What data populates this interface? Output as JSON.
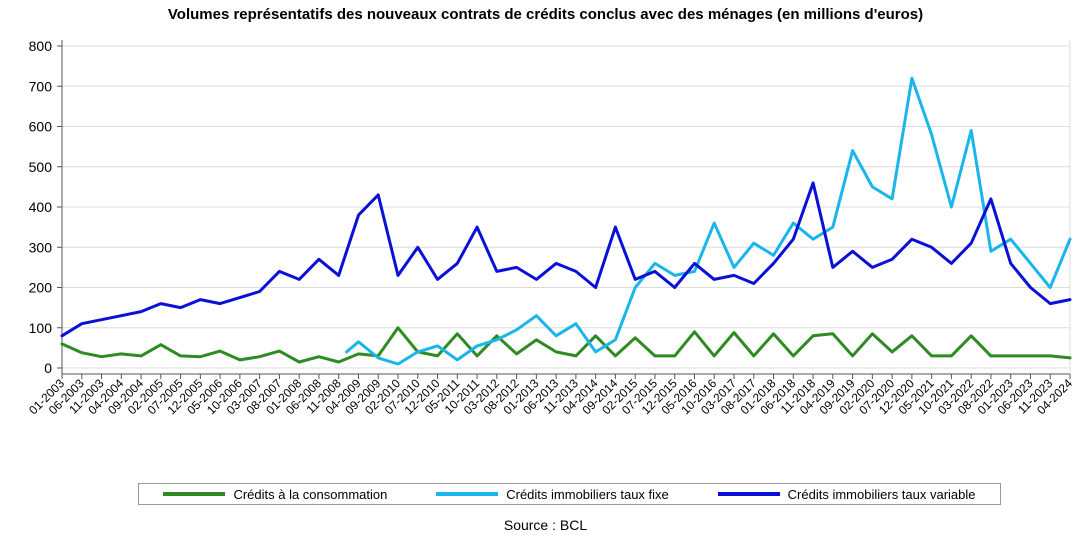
{
  "chart_data": {
    "type": "line",
    "title": "Volumes représentatifs des nouveaux contrats de crédits conclus avec des ménages (en millions d'euros)",
    "source": "Source : BCL",
    "ylim": [
      0,
      800
    ],
    "yticks": [
      0,
      100,
      200,
      300,
      400,
      500,
      600,
      700,
      800
    ],
    "xlim": [
      "2003-01",
      "2024-04"
    ],
    "xtick_labels": [
      "01-2003",
      "06-2003",
      "11-2003",
      "04-2004",
      "09-2004",
      "02-2005",
      "07-2005",
      "12-2005",
      "05-2006",
      "10-2006",
      "03-2007",
      "08-2007",
      "01-2008",
      "06-2008",
      "11-2008",
      "04-2009",
      "09-2009",
      "02-2010",
      "07-2010",
      "12-2010",
      "05-2011",
      "10-2011",
      "03-2012",
      "08-2012",
      "01-2013",
      "06-2013",
      "11-2013",
      "04-2014",
      "09-2014",
      "02-2015",
      "07-2015",
      "12-2015",
      "05-2016",
      "10-2016",
      "03-2017",
      "08-2017",
      "01-2018",
      "06-2018",
      "11-2018",
      "04-2019",
      "09-2019",
      "02-2020",
      "07-2020",
      "12-2020",
      "05-2021",
      "10-2021",
      "03-2022",
      "08-2022",
      "01-2023",
      "06-2023",
      "11-2023",
      "04-2024"
    ],
    "grid": true,
    "legend_position": "bottom",
    "series": [
      {
        "name": "Crédits à la consommation",
        "color": "#2e8b22",
        "points": [
          [
            "2003-01",
            60
          ],
          [
            "2003-06",
            38
          ],
          [
            "2003-11",
            28
          ],
          [
            "2004-04",
            35
          ],
          [
            "2004-09",
            30
          ],
          [
            "2005-02",
            58
          ],
          [
            "2005-07",
            30
          ],
          [
            "2005-12",
            28
          ],
          [
            "2006-05",
            42
          ],
          [
            "2006-10",
            20
          ],
          [
            "2007-03",
            28
          ],
          [
            "2007-08",
            42
          ],
          [
            "2008-01",
            15
          ],
          [
            "2008-06",
            28
          ],
          [
            "2008-11",
            15
          ],
          [
            "2009-04",
            35
          ],
          [
            "2009-09",
            30
          ],
          [
            "2010-02",
            100
          ],
          [
            "2010-07",
            40
          ],
          [
            "2010-12",
            30
          ],
          [
            "2011-05",
            85
          ],
          [
            "2011-10",
            30
          ],
          [
            "2012-03",
            80
          ],
          [
            "2012-08",
            35
          ],
          [
            "2013-01",
            70
          ],
          [
            "2013-06",
            40
          ],
          [
            "2013-11",
            30
          ],
          [
            "2014-04",
            80
          ],
          [
            "2014-09",
            30
          ],
          [
            "2015-02",
            75
          ],
          [
            "2015-07",
            30
          ],
          [
            "2015-12",
            30
          ],
          [
            "2016-05",
            90
          ],
          [
            "2016-10",
            30
          ],
          [
            "2017-03",
            88
          ],
          [
            "2017-08",
            30
          ],
          [
            "2018-01",
            85
          ],
          [
            "2018-06",
            30
          ],
          [
            "2018-11",
            80
          ],
          [
            "2019-04",
            85
          ],
          [
            "2019-09",
            30
          ],
          [
            "2020-02",
            85
          ],
          [
            "2020-07",
            40
          ],
          [
            "2020-12",
            80
          ],
          [
            "2021-05",
            30
          ],
          [
            "2021-10",
            30
          ],
          [
            "2022-03",
            80
          ],
          [
            "2022-08",
            30
          ],
          [
            "2023-01",
            30
          ],
          [
            "2023-06",
            30
          ],
          [
            "2023-11",
            30
          ],
          [
            "2024-04",
            25
          ]
        ]
      },
      {
        "name": "Crédits immobiliers taux fixe",
        "color": "#1ab5ea",
        "points": [
          [
            "2009-01",
            40
          ],
          [
            "2009-04",
            65
          ],
          [
            "2009-09",
            25
          ],
          [
            "2010-02",
            10
          ],
          [
            "2010-07",
            40
          ],
          [
            "2010-12",
            55
          ],
          [
            "2011-05",
            20
          ],
          [
            "2011-10",
            55
          ],
          [
            "2012-03",
            70
          ],
          [
            "2012-08",
            95
          ],
          [
            "2013-01",
            130
          ],
          [
            "2013-06",
            80
          ],
          [
            "2013-11",
            110
          ],
          [
            "2014-04",
            40
          ],
          [
            "2014-09",
            70
          ],
          [
            "2015-02",
            200
          ],
          [
            "2015-07",
            260
          ],
          [
            "2015-12",
            230
          ],
          [
            "2016-05",
            240
          ],
          [
            "2016-10",
            360
          ],
          [
            "2017-03",
            250
          ],
          [
            "2017-08",
            310
          ],
          [
            "2018-01",
            280
          ],
          [
            "2018-06",
            360
          ],
          [
            "2018-11",
            320
          ],
          [
            "2019-04",
            350
          ],
          [
            "2019-09",
            540
          ],
          [
            "2020-02",
            450
          ],
          [
            "2020-07",
            420
          ],
          [
            "2020-12",
            720
          ],
          [
            "2021-05",
            580
          ],
          [
            "2021-10",
            400
          ],
          [
            "2022-03",
            590
          ],
          [
            "2022-08",
            290
          ],
          [
            "2023-01",
            320
          ],
          [
            "2023-06",
            260
          ],
          [
            "2023-11",
            200
          ],
          [
            "2024-04",
            320
          ]
        ]
      },
      {
        "name": "Crédits immobiliers taux variable",
        "color": "#0a10d8",
        "points": [
          [
            "2003-01",
            80
          ],
          [
            "2003-06",
            110
          ],
          [
            "2003-11",
            120
          ],
          [
            "2004-04",
            130
          ],
          [
            "2004-09",
            140
          ],
          [
            "2005-02",
            160
          ],
          [
            "2005-07",
            150
          ],
          [
            "2005-12",
            170
          ],
          [
            "2006-05",
            160
          ],
          [
            "2006-10",
            175
          ],
          [
            "2007-03",
            190
          ],
          [
            "2007-08",
            240
          ],
          [
            "2008-01",
            220
          ],
          [
            "2008-06",
            270
          ],
          [
            "2008-11",
            230
          ],
          [
            "2009-04",
            380
          ],
          [
            "2009-09",
            430
          ],
          [
            "2010-02",
            230
          ],
          [
            "2010-07",
            300
          ],
          [
            "2010-12",
            220
          ],
          [
            "2011-05",
            260
          ],
          [
            "2011-10",
            350
          ],
          [
            "2012-03",
            240
          ],
          [
            "2012-08",
            250
          ],
          [
            "2013-01",
            220
          ],
          [
            "2013-06",
            260
          ],
          [
            "2013-11",
            240
          ],
          [
            "2014-04",
            200
          ],
          [
            "2014-09",
            350
          ],
          [
            "2015-02",
            220
          ],
          [
            "2015-07",
            240
          ],
          [
            "2015-12",
            200
          ],
          [
            "2016-05",
            260
          ],
          [
            "2016-10",
            220
          ],
          [
            "2017-03",
            230
          ],
          [
            "2017-08",
            210
          ],
          [
            "2018-01",
            260
          ],
          [
            "2018-06",
            320
          ],
          [
            "2018-11",
            460
          ],
          [
            "2019-04",
            250
          ],
          [
            "2019-09",
            290
          ],
          [
            "2020-02",
            250
          ],
          [
            "2020-07",
            270
          ],
          [
            "2020-12",
            320
          ],
          [
            "2021-05",
            300
          ],
          [
            "2021-10",
            260
          ],
          [
            "2022-03",
            310
          ],
          [
            "2022-08",
            420
          ],
          [
            "2023-01",
            260
          ],
          [
            "2023-06",
            200
          ],
          [
            "2023-11",
            160
          ],
          [
            "2024-04",
            170
          ]
        ]
      }
    ]
  }
}
